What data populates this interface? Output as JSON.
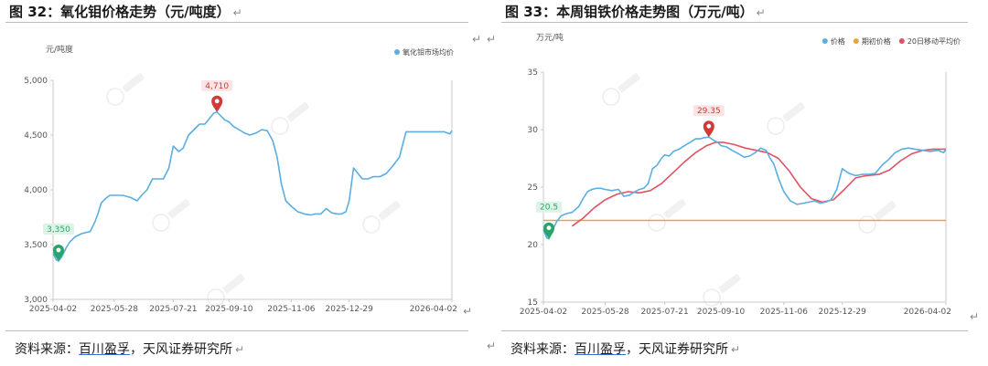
{
  "return_mark": "↵",
  "charts": [
    {
      "figure_title": "图 32：氧化钼价格走势（元/吨度）",
      "unit": "元/吨度",
      "source": {
        "prefix": "资料来源：",
        "highlight": "百川盈孚",
        "suffix": "，天风证券研究所"
      }
    },
    {
      "figure_title": "图 33：本周钼铁价格走势图（万元/吨）",
      "unit": "万元/吨",
      "source": {
        "prefix": "资料来源：",
        "highlight": "百川盈孚",
        "suffix": "，天风证券研究所"
      }
    }
  ],
  "chart_data": [
    {
      "type": "line",
      "title": "",
      "ylabel": "元/吨度",
      "ylim": [
        3000,
        5000
      ],
      "yticks": [
        "3,000",
        "3,500",
        "4,000",
        "4,500",
        "5,000"
      ],
      "xlim": [
        "2025-04-02",
        "2026-04-02"
      ],
      "xticks": [
        "2025-04-02",
        "2025-05-28",
        "2025-07-21",
        "2025-09-10",
        "2025-11-06",
        "2025-12-29",
        "2026-04-02"
      ],
      "legend_position": "top-right",
      "grid": false,
      "series": [
        {
          "name": "氧化钼市场均价",
          "color": "#5aaee0",
          "x": [
            "2025-04-02",
            "2025-04-05",
            "2025-04-07",
            "2025-04-10",
            "2025-04-14",
            "2025-04-17",
            "2025-04-22",
            "2025-04-28",
            "2025-05-06",
            "2025-05-10",
            "2025-05-13",
            "2025-05-16",
            "2025-05-20",
            "2025-05-24",
            "2025-05-28",
            "2025-06-05",
            "2025-06-12",
            "2025-06-18",
            "2025-06-22",
            "2025-06-27",
            "2025-07-02",
            "2025-07-07",
            "2025-07-12",
            "2025-07-17",
            "2025-07-21",
            "2025-07-26",
            "2025-07-30",
            "2025-08-04",
            "2025-08-09",
            "2025-08-14",
            "2025-08-19",
            "2025-08-23",
            "2025-08-27",
            "2025-08-30",
            "2025-09-02",
            "2025-09-06",
            "2025-09-10",
            "2025-09-14",
            "2025-09-19",
            "2025-09-24",
            "2025-09-29",
            "2025-10-05",
            "2025-10-10",
            "2025-10-15",
            "2025-10-20",
            "2025-10-24",
            "2025-10-28",
            "2025-11-01",
            "2025-11-06",
            "2025-11-12",
            "2025-11-18",
            "2025-11-24",
            "2025-11-28",
            "2025-12-03",
            "2025-12-08",
            "2025-12-13",
            "2025-12-18",
            "2025-12-22",
            "2025-12-26",
            "2025-12-29",
            "2026-01-02",
            "2026-01-06",
            "2026-01-10",
            "2026-01-15",
            "2026-01-20",
            "2026-01-26",
            "2026-02-01",
            "2026-02-07",
            "2026-02-13",
            "2026-02-19",
            "2026-02-25",
            "2026-03-03",
            "2026-03-10",
            "2026-03-18",
            "2026-03-26",
            "2026-03-31",
            "2026-04-02"
          ],
          "y": [
            3420,
            3360,
            3350,
            3390,
            3470,
            3520,
            3570,
            3600,
            3620,
            3700,
            3780,
            3880,
            3920,
            3950,
            3950,
            3950,
            3930,
            3900,
            3950,
            4000,
            4100,
            4100,
            4100,
            4200,
            4400,
            4350,
            4380,
            4500,
            4550,
            4600,
            4600,
            4650,
            4700,
            4710,
            4680,
            4640,
            4620,
            4580,
            4550,
            4520,
            4500,
            4520,
            4550,
            4540,
            4450,
            4300,
            4050,
            3900,
            3850,
            3800,
            3780,
            3770,
            3780,
            3780,
            3830,
            3790,
            3780,
            3780,
            3800,
            3900,
            4200,
            4150,
            4100,
            4100,
            4120,
            4120,
            4150,
            4220,
            4300,
            4530,
            4530,
            4530,
            4530,
            4530,
            4530,
            4510,
            4540
          ]
        }
      ],
      "annotations": [
        {
          "label": "4,710",
          "x": "2025-08-30",
          "y": 4710,
          "kind": "max",
          "color": "#d23a3a"
        },
        {
          "label": "3,350",
          "x": "2025-04-07",
          "y": 3350,
          "kind": "min",
          "color": "#2aa56a"
        }
      ]
    },
    {
      "type": "line",
      "title": "",
      "ylabel": "万元/吨",
      "ylim": [
        15,
        35
      ],
      "yticks": [
        "15",
        "20",
        "25",
        "30",
        "35"
      ],
      "xlim": [
        "2025-04-02",
        "2026-04-02"
      ],
      "xticks": [
        "2025-04-02",
        "2025-05-28",
        "2025-07-21",
        "2025-09-10",
        "2025-11-06",
        "2025-12-29",
        "2026-04-02"
      ],
      "legend_position": "top-right",
      "grid": false,
      "series": [
        {
          "name": "价格",
          "color": "#5aaee0",
          "x": [
            "2025-04-02",
            "2025-04-05",
            "2025-04-07",
            "2025-04-10",
            "2025-04-14",
            "2025-04-18",
            "2025-04-23",
            "2025-04-28",
            "2025-05-04",
            "2025-05-08",
            "2025-05-12",
            "2025-05-16",
            "2025-05-20",
            "2025-05-24",
            "2025-05-28",
            "2025-06-03",
            "2025-06-09",
            "2025-06-14",
            "2025-06-19",
            "2025-06-24",
            "2025-06-28",
            "2025-07-02",
            "2025-07-06",
            "2025-07-10",
            "2025-07-14",
            "2025-07-18",
            "2025-07-21",
            "2025-07-25",
            "2025-07-29",
            "2025-08-03",
            "2025-08-08",
            "2025-08-13",
            "2025-08-18",
            "2025-08-22",
            "2025-08-26",
            "2025-08-30",
            "2025-09-03",
            "2025-09-07",
            "2025-09-10",
            "2025-09-15",
            "2025-09-20",
            "2025-09-26",
            "2025-10-01",
            "2025-10-06",
            "2025-10-11",
            "2025-10-16",
            "2025-10-21",
            "2025-10-24",
            "2025-10-28",
            "2025-11-01",
            "2025-11-06",
            "2025-11-12",
            "2025-11-18",
            "2025-11-24",
            "2025-11-29",
            "2025-12-04",
            "2025-12-09",
            "2025-12-14",
            "2025-12-19",
            "2025-12-24",
            "2025-12-29",
            "2026-01-04",
            "2026-01-10",
            "2026-01-16",
            "2026-01-22",
            "2026-01-28",
            "2026-02-03",
            "2026-02-09",
            "2026-02-15",
            "2026-02-21",
            "2026-02-27",
            "2026-03-05",
            "2026-03-12",
            "2026-03-19",
            "2026-03-26",
            "2026-03-31",
            "2026-04-02"
          ],
          "y": [
            21.3,
            20.6,
            20.5,
            21.2,
            22.0,
            22.5,
            22.7,
            22.8,
            23.3,
            24.0,
            24.6,
            24.8,
            24.9,
            24.9,
            24.8,
            24.7,
            24.8,
            24.2,
            24.3,
            24.6,
            24.8,
            24.9,
            25.3,
            26.6,
            26.9,
            27.5,
            27.8,
            27.7,
            28.1,
            28.3,
            28.6,
            28.9,
            29.2,
            29.2,
            29.3,
            29.35,
            29.1,
            28.9,
            28.6,
            28.5,
            28.2,
            27.9,
            27.6,
            27.7,
            28.0,
            28.4,
            28.2,
            27.6,
            27.0,
            25.8,
            24.6,
            23.8,
            23.5,
            23.6,
            23.7,
            23.8,
            23.6,
            23.7,
            23.9,
            24.8,
            26.6,
            26.2,
            26.0,
            26.1,
            26.1,
            26.2,
            26.9,
            27.4,
            28.0,
            28.3,
            28.4,
            28.3,
            28.2,
            28.1,
            28.2,
            28.0,
            28.3
          ]
        },
        {
          "name": "期初价格",
          "color": "#e9a63b",
          "x": [
            "2025-04-02",
            "2026-04-02"
          ],
          "y": [
            22.1,
            22.1
          ]
        },
        {
          "name": "20日移动平均价",
          "color": "#e05263",
          "x": [
            "2025-04-28",
            "2025-05-08",
            "2025-05-18",
            "2025-05-28",
            "2025-06-08",
            "2025-06-18",
            "2025-06-28",
            "2025-07-08",
            "2025-07-18",
            "2025-07-28",
            "2025-08-08",
            "2025-08-18",
            "2025-08-28",
            "2025-09-05",
            "2025-09-12",
            "2025-09-22",
            "2025-10-02",
            "2025-10-12",
            "2025-10-22",
            "2025-11-01",
            "2025-11-11",
            "2025-11-21",
            "2025-12-01",
            "2025-12-11",
            "2025-12-21",
            "2025-12-31",
            "2026-01-10",
            "2026-01-20",
            "2026-01-31",
            "2026-02-10",
            "2026-02-20",
            "2026-03-02",
            "2026-03-12",
            "2026-03-22",
            "2026-04-02"
          ],
          "y": [
            21.6,
            22.3,
            23.2,
            23.9,
            24.4,
            24.6,
            24.5,
            24.7,
            25.3,
            26.2,
            27.2,
            28.0,
            28.6,
            28.9,
            28.9,
            28.7,
            28.4,
            28.2,
            28.0,
            27.5,
            26.4,
            25.0,
            24.0,
            23.7,
            23.9,
            24.8,
            25.8,
            26.0,
            26.1,
            26.5,
            27.3,
            27.9,
            28.2,
            28.3,
            28.3
          ]
        }
      ],
      "annotations": [
        {
          "label": "29.35",
          "x": "2025-08-30",
          "y": 29.35,
          "kind": "max",
          "color": "#d23a3a"
        },
        {
          "label": "20.5",
          "x": "2025-04-07",
          "y": 20.5,
          "kind": "min",
          "color": "#2aa56a"
        }
      ]
    }
  ]
}
